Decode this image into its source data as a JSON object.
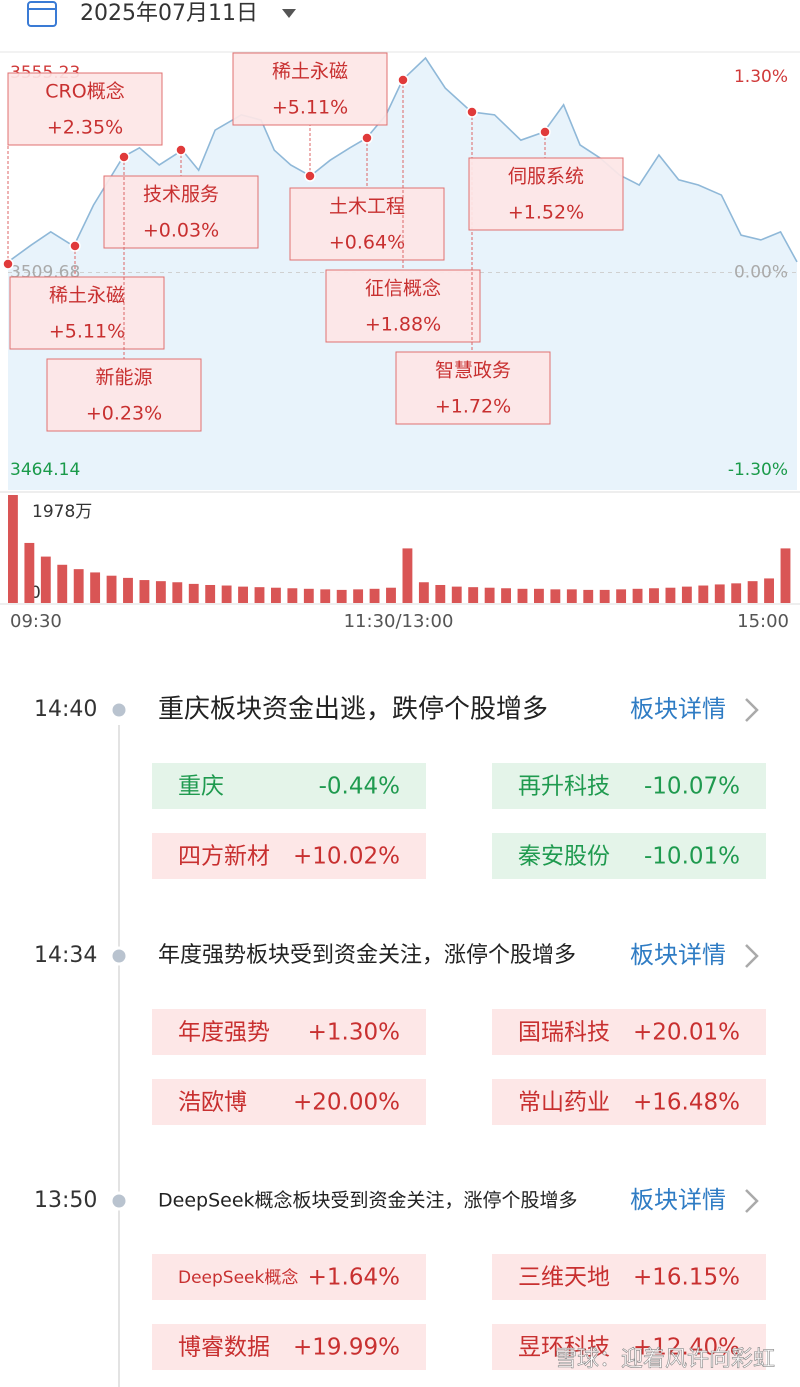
{
  "header": {
    "date": "2025年07月11日"
  },
  "chart_data": [
    {
      "type": "line",
      "x": [
        0,
        7,
        13,
        20,
        26,
        35,
        40,
        46,
        53,
        58,
        63,
        71,
        77,
        81,
        86,
        92,
        98,
        104,
        109,
        115,
        120,
        127,
        133,
        141,
        148,
        156,
        163,
        169,
        174,
        180,
        186,
        192,
        198,
        204,
        210,
        217,
        223,
        229,
        235,
        240
      ],
      "series": [
        {
          "color": "#8fb8d8",
          "values": [
            3511.9,
            3515.4,
            3518.2,
            3515.2,
            3523.8,
            3533.9,
            3535.8,
            3532.2,
            3535.3,
            3531.1,
            3539.5,
            3542.7,
            3541.6,
            3535.3,
            3532.2,
            3529.9,
            3533.2,
            3535.8,
            3537.8,
            3542.7,
            3550.0,
            3554.6,
            3548.3,
            3543.3,
            3542.7,
            3537.4,
            3539.1,
            3544.8,
            3536.4,
            3533.7,
            3530.1,
            3528.0,
            3534.3,
            3529.1,
            3528.0,
            3525.9,
            3517.5,
            3516.5,
            3518.2,
            3511.9
          ]
        }
      ],
      "xlim": [
        0,
        240
      ],
      "xticks": [
        {
          "value": 0,
          "label": "09:30"
        },
        {
          "value": 120,
          "label": "11:30/13:00"
        },
        {
          "value": 240,
          "label": "15:00"
        }
      ],
      "ylim": [
        3464.14,
        3555.23
      ],
      "yticks": [
        3464.14,
        3509.68,
        3555.23
      ],
      "y2lim": [
        -1.3,
        1.3
      ],
      "y2ticks": [
        {
          "value": -1.3,
          "label": "-1.30%"
        },
        {
          "value": 0,
          "label": "0.00%"
        },
        {
          "value": 1.3,
          "label": "1.30%"
        }
      ],
      "annotations": [
        {
          "label": "CRO概念",
          "change": "+2.35%"
        },
        {
          "label": "技术服务",
          "change": "+0.03%"
        },
        {
          "label": "稀土永磁",
          "change": "+5.11%"
        },
        {
          "label": "新能源",
          "change": "+0.23%"
        },
        {
          "label": "稀土永磁",
          "change": "+5.11%"
        },
        {
          "label": "土木工程",
          "change": "+0.64%"
        },
        {
          "label": "征信概念",
          "change": "+1.88%"
        },
        {
          "label": "智慧政务",
          "change": "+1.72%"
        },
        {
          "label": "伺服系统",
          "change": "+1.52%"
        }
      ]
    },
    {
      "type": "bar",
      "x": [
        0,
        5,
        10,
        15,
        20,
        25,
        30,
        35,
        40,
        45,
        50,
        55,
        60,
        65,
        70,
        75,
        80,
        85,
        90,
        95,
        100,
        105,
        110,
        115,
        120,
        125,
        130,
        135,
        140,
        145,
        150,
        155,
        160,
        165,
        170,
        175,
        180,
        185,
        190,
        195,
        200,
        205,
        210,
        215,
        220,
        225,
        230,
        235
      ],
      "values": [
        1978,
        1100,
        850,
        700,
        620,
        560,
        500,
        460,
        420,
        400,
        380,
        350,
        330,
        320,
        300,
        290,
        280,
        270,
        260,
        250,
        240,
        250,
        260,
        280,
        1000,
        380,
        330,
        300,
        290,
        280,
        270,
        260,
        260,
        250,
        250,
        240,
        240,
        250,
        260,
        270,
        280,
        300,
        320,
        340,
        360,
        400,
        450,
        1000
      ],
      "color": "#d95555",
      "xlim": [
        0,
        240
      ],
      "ylim": [
        0,
        1978
      ],
      "yticks": [
        0,
        {
          "value": 1978,
          "label": "1978万"
        }
      ]
    }
  ],
  "events": [
    {
      "time": "14:40",
      "title": "重庆板块资金出逃，跌停个股增多",
      "link": "板块详情",
      "items": [
        {
          "name": "重庆",
          "change": "-0.44%"
        },
        {
          "name": "再升科技",
          "change": "-10.07%"
        },
        {
          "name": "四方新材",
          "change": "+10.02%"
        },
        {
          "name": "秦安股份",
          "change": "-10.01%"
        }
      ]
    },
    {
      "time": "14:34",
      "title": "年度强势板块受到资金关注，涨停个股增多",
      "link": "板块详情",
      "items": [
        {
          "name": "年度强势",
          "change": "+1.30%"
        },
        {
          "name": "国瑞科技",
          "change": "+20.01%"
        },
        {
          "name": "浩欧博",
          "change": "+20.00%"
        },
        {
          "name": "常山药业",
          "change": "+16.48%"
        }
      ]
    },
    {
      "time": "13:50",
      "title": "DeepSeek概念板块受到资金关注，涨停个股增多",
      "link": "板块详情",
      "items": [
        {
          "name": "DeepSeek概念",
          "change": "+1.64%"
        },
        {
          "name": "三维天地",
          "change": "+16.15%"
        },
        {
          "name": "博睿数据",
          "change": "+19.99%"
        },
        {
          "name": "昱环科技",
          "change": "+12.40%"
        }
      ]
    }
  ],
  "watermark": "雪球：迎着风许向彩虹"
}
